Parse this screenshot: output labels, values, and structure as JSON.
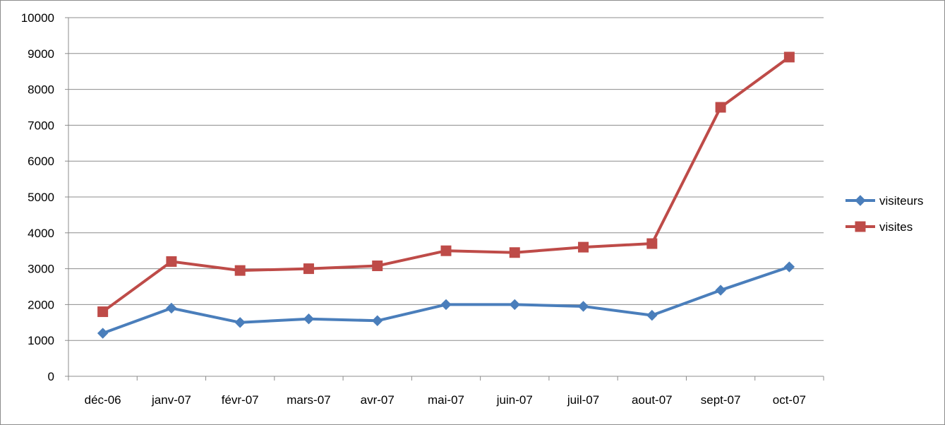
{
  "chart_data": {
    "type": "line",
    "categories": [
      "déc-06",
      "janv-07",
      "févr-07",
      "mars-07",
      "avr-07",
      "mai-07",
      "juin-07",
      "juil-07",
      "aout-07",
      "sept-07",
      "oct-07"
    ],
    "series": [
      {
        "name": "visiteurs",
        "color": "#4a7ebb",
        "marker": "diamond",
        "values": [
          1200,
          1900,
          1500,
          1600,
          1550,
          2000,
          2000,
          1950,
          1700,
          2400,
          3050
        ]
      },
      {
        "name": "visites",
        "color": "#be4b48",
        "marker": "square",
        "values": [
          1800,
          3200,
          2950,
          3000,
          3080,
          3500,
          3450,
          3600,
          3700,
          7500,
          8900
        ]
      }
    ],
    "ylim": [
      0,
      10000
    ],
    "yticks": [
      0,
      1000,
      2000,
      3000,
      4000,
      5000,
      6000,
      7000,
      8000,
      9000,
      10000
    ],
    "grid": true,
    "legend_position": "right",
    "title": "",
    "xlabel": "",
    "ylabel": ""
  }
}
